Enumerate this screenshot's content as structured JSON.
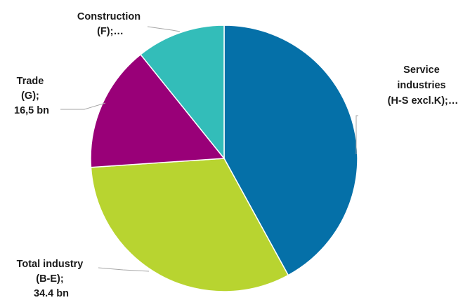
{
  "chart_data": {
    "type": "pie",
    "title": "",
    "slices": [
      {
        "label": [
          "Service",
          "industries",
          "(H-S excl.K);…"
        ],
        "value": 45.3,
        "value_label": "",
        "color": "#0570A8"
      },
      {
        "label": [
          "Total industry",
          "(B-E);",
          "34.4 bn"
        ],
        "value": 34.4,
        "value_label": "34.4 bn",
        "color": "#B8D430"
      },
      {
        "label": [
          "Trade",
          "(G);",
          "16,5 bn"
        ],
        "value": 16.5,
        "value_label": "16,5 bn",
        "color": "#990078"
      },
      {
        "label": [
          "Construction",
          "(F);…"
        ],
        "value": 11.6,
        "value_label": "",
        "color": "#33BDB9"
      }
    ]
  }
}
